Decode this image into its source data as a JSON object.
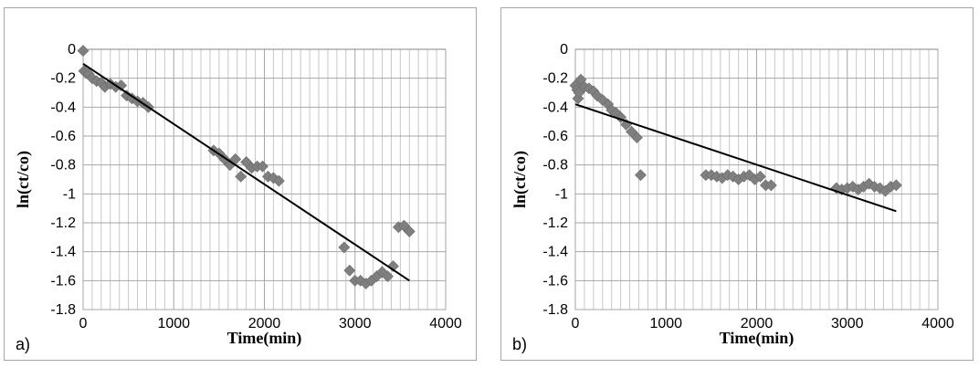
{
  "chart_data": [
    {
      "type": "scatter",
      "panel_label": "a)",
      "xlabel": "Time(min)",
      "ylabel": "ln(ct/co)",
      "xlim": [
        0,
        4000
      ],
      "ylim": [
        -1.8,
        0
      ],
      "xticks": [
        0,
        1000,
        2000,
        3000,
        4000
      ],
      "yticks": [
        0,
        -0.2,
        -0.4,
        -0.6,
        -0.8,
        -1,
        -1.2,
        -1.4,
        -1.6,
        -1.8
      ],
      "ytick_labels": [
        "0",
        "-0.2",
        "-0.4",
        "-0.6",
        "-0.8",
        "-1",
        "-1.2",
        "-1.4",
        "-1.6",
        "-1.8"
      ],
      "grid": true,
      "marker_color": "#7f7f7f",
      "points": [
        [
          0,
          -0.01
        ],
        [
          10,
          -0.15
        ],
        [
          30,
          -0.16
        ],
        [
          60,
          -0.17
        ],
        [
          100,
          -0.2
        ],
        [
          150,
          -0.22
        ],
        [
          200,
          -0.23
        ],
        [
          240,
          -0.26
        ],
        [
          300,
          -0.24
        ],
        [
          360,
          -0.26
        ],
        [
          420,
          -0.25
        ],
        [
          480,
          -0.32
        ],
        [
          540,
          -0.34
        ],
        [
          600,
          -0.36
        ],
        [
          660,
          -0.37
        ],
        [
          720,
          -0.4
        ],
        [
          1440,
          -0.7
        ],
        [
          1500,
          -0.72
        ],
        [
          1560,
          -0.76
        ],
        [
          1620,
          -0.8
        ],
        [
          1680,
          -0.76
        ],
        [
          1740,
          -0.88
        ],
        [
          1800,
          -0.78
        ],
        [
          1860,
          -0.82
        ],
        [
          1920,
          -0.81
        ],
        [
          1980,
          -0.81
        ],
        [
          2040,
          -0.88
        ],
        [
          2100,
          -0.89
        ],
        [
          2160,
          -0.91
        ],
        [
          2880,
          -1.37
        ],
        [
          2940,
          -1.53
        ],
        [
          3000,
          -1.6
        ],
        [
          3060,
          -1.6
        ],
        [
          3120,
          -1.62
        ],
        [
          3180,
          -1.6
        ],
        [
          3240,
          -1.57
        ],
        [
          3300,
          -1.54
        ],
        [
          3360,
          -1.57
        ],
        [
          3420,
          -1.5
        ],
        [
          3480,
          -1.23
        ],
        [
          3540,
          -1.22
        ],
        [
          3600,
          -1.26
        ]
      ],
      "trendline": {
        "x": [
          0,
          3600
        ],
        "y": [
          -0.1,
          -1.6
        ],
        "color": "#000000"
      }
    },
    {
      "type": "scatter",
      "panel_label": "b)",
      "xlabel": "Time(min)",
      "ylabel": "ln(ct/co)",
      "xlim": [
        0,
        4000
      ],
      "ylim": [
        -1.8,
        0
      ],
      "xticks": [
        0,
        1000,
        2000,
        3000,
        4000
      ],
      "yticks": [
        0,
        -0.2,
        -0.4,
        -0.6,
        -0.8,
        -1,
        -1.2,
        -1.4,
        -1.6,
        -1.8
      ],
      "ytick_labels": [
        "0",
        "-0.2",
        "-0.4",
        "-0.6",
        "-0.8",
        "-1",
        "-1.2",
        "-1.4",
        "-1.6",
        "-1.8"
      ],
      "grid": true,
      "marker_color": "#7f7f7f",
      "points": [
        [
          0,
          -0.25
        ],
        [
          20,
          -0.28
        ],
        [
          30,
          -0.34
        ],
        [
          40,
          -0.3
        ],
        [
          60,
          -0.21
        ],
        [
          100,
          -0.26
        ],
        [
          150,
          -0.27
        ],
        [
          200,
          -0.29
        ],
        [
          240,
          -0.32
        ],
        [
          300,
          -0.35
        ],
        [
          360,
          -0.38
        ],
        [
          400,
          -0.42
        ],
        [
          450,
          -0.44
        ],
        [
          500,
          -0.47
        ],
        [
          560,
          -0.52
        ],
        [
          620,
          -0.57
        ],
        [
          680,
          -0.61
        ],
        [
          720,
          -0.87
        ],
        [
          1440,
          -0.87
        ],
        [
          1500,
          -0.87
        ],
        [
          1560,
          -0.88
        ],
        [
          1620,
          -0.89
        ],
        [
          1680,
          -0.87
        ],
        [
          1740,
          -0.88
        ],
        [
          1800,
          -0.9
        ],
        [
          1860,
          -0.88
        ],
        [
          1920,
          -0.87
        ],
        [
          1980,
          -0.9
        ],
        [
          2040,
          -0.88
        ],
        [
          2100,
          -0.94
        ],
        [
          2160,
          -0.94
        ],
        [
          2880,
          -0.96
        ],
        [
          2940,
          -0.97
        ],
        [
          3000,
          -0.96
        ],
        [
          3060,
          -0.95
        ],
        [
          3120,
          -0.97
        ],
        [
          3180,
          -0.95
        ],
        [
          3240,
          -0.93
        ],
        [
          3300,
          -0.95
        ],
        [
          3360,
          -0.96
        ],
        [
          3420,
          -0.98
        ],
        [
          3480,
          -0.95
        ],
        [
          3540,
          -0.94
        ]
      ],
      "trendline": {
        "x": [
          0,
          3540
        ],
        "y": [
          -0.38,
          -1.12
        ],
        "color": "#000000"
      }
    }
  ]
}
